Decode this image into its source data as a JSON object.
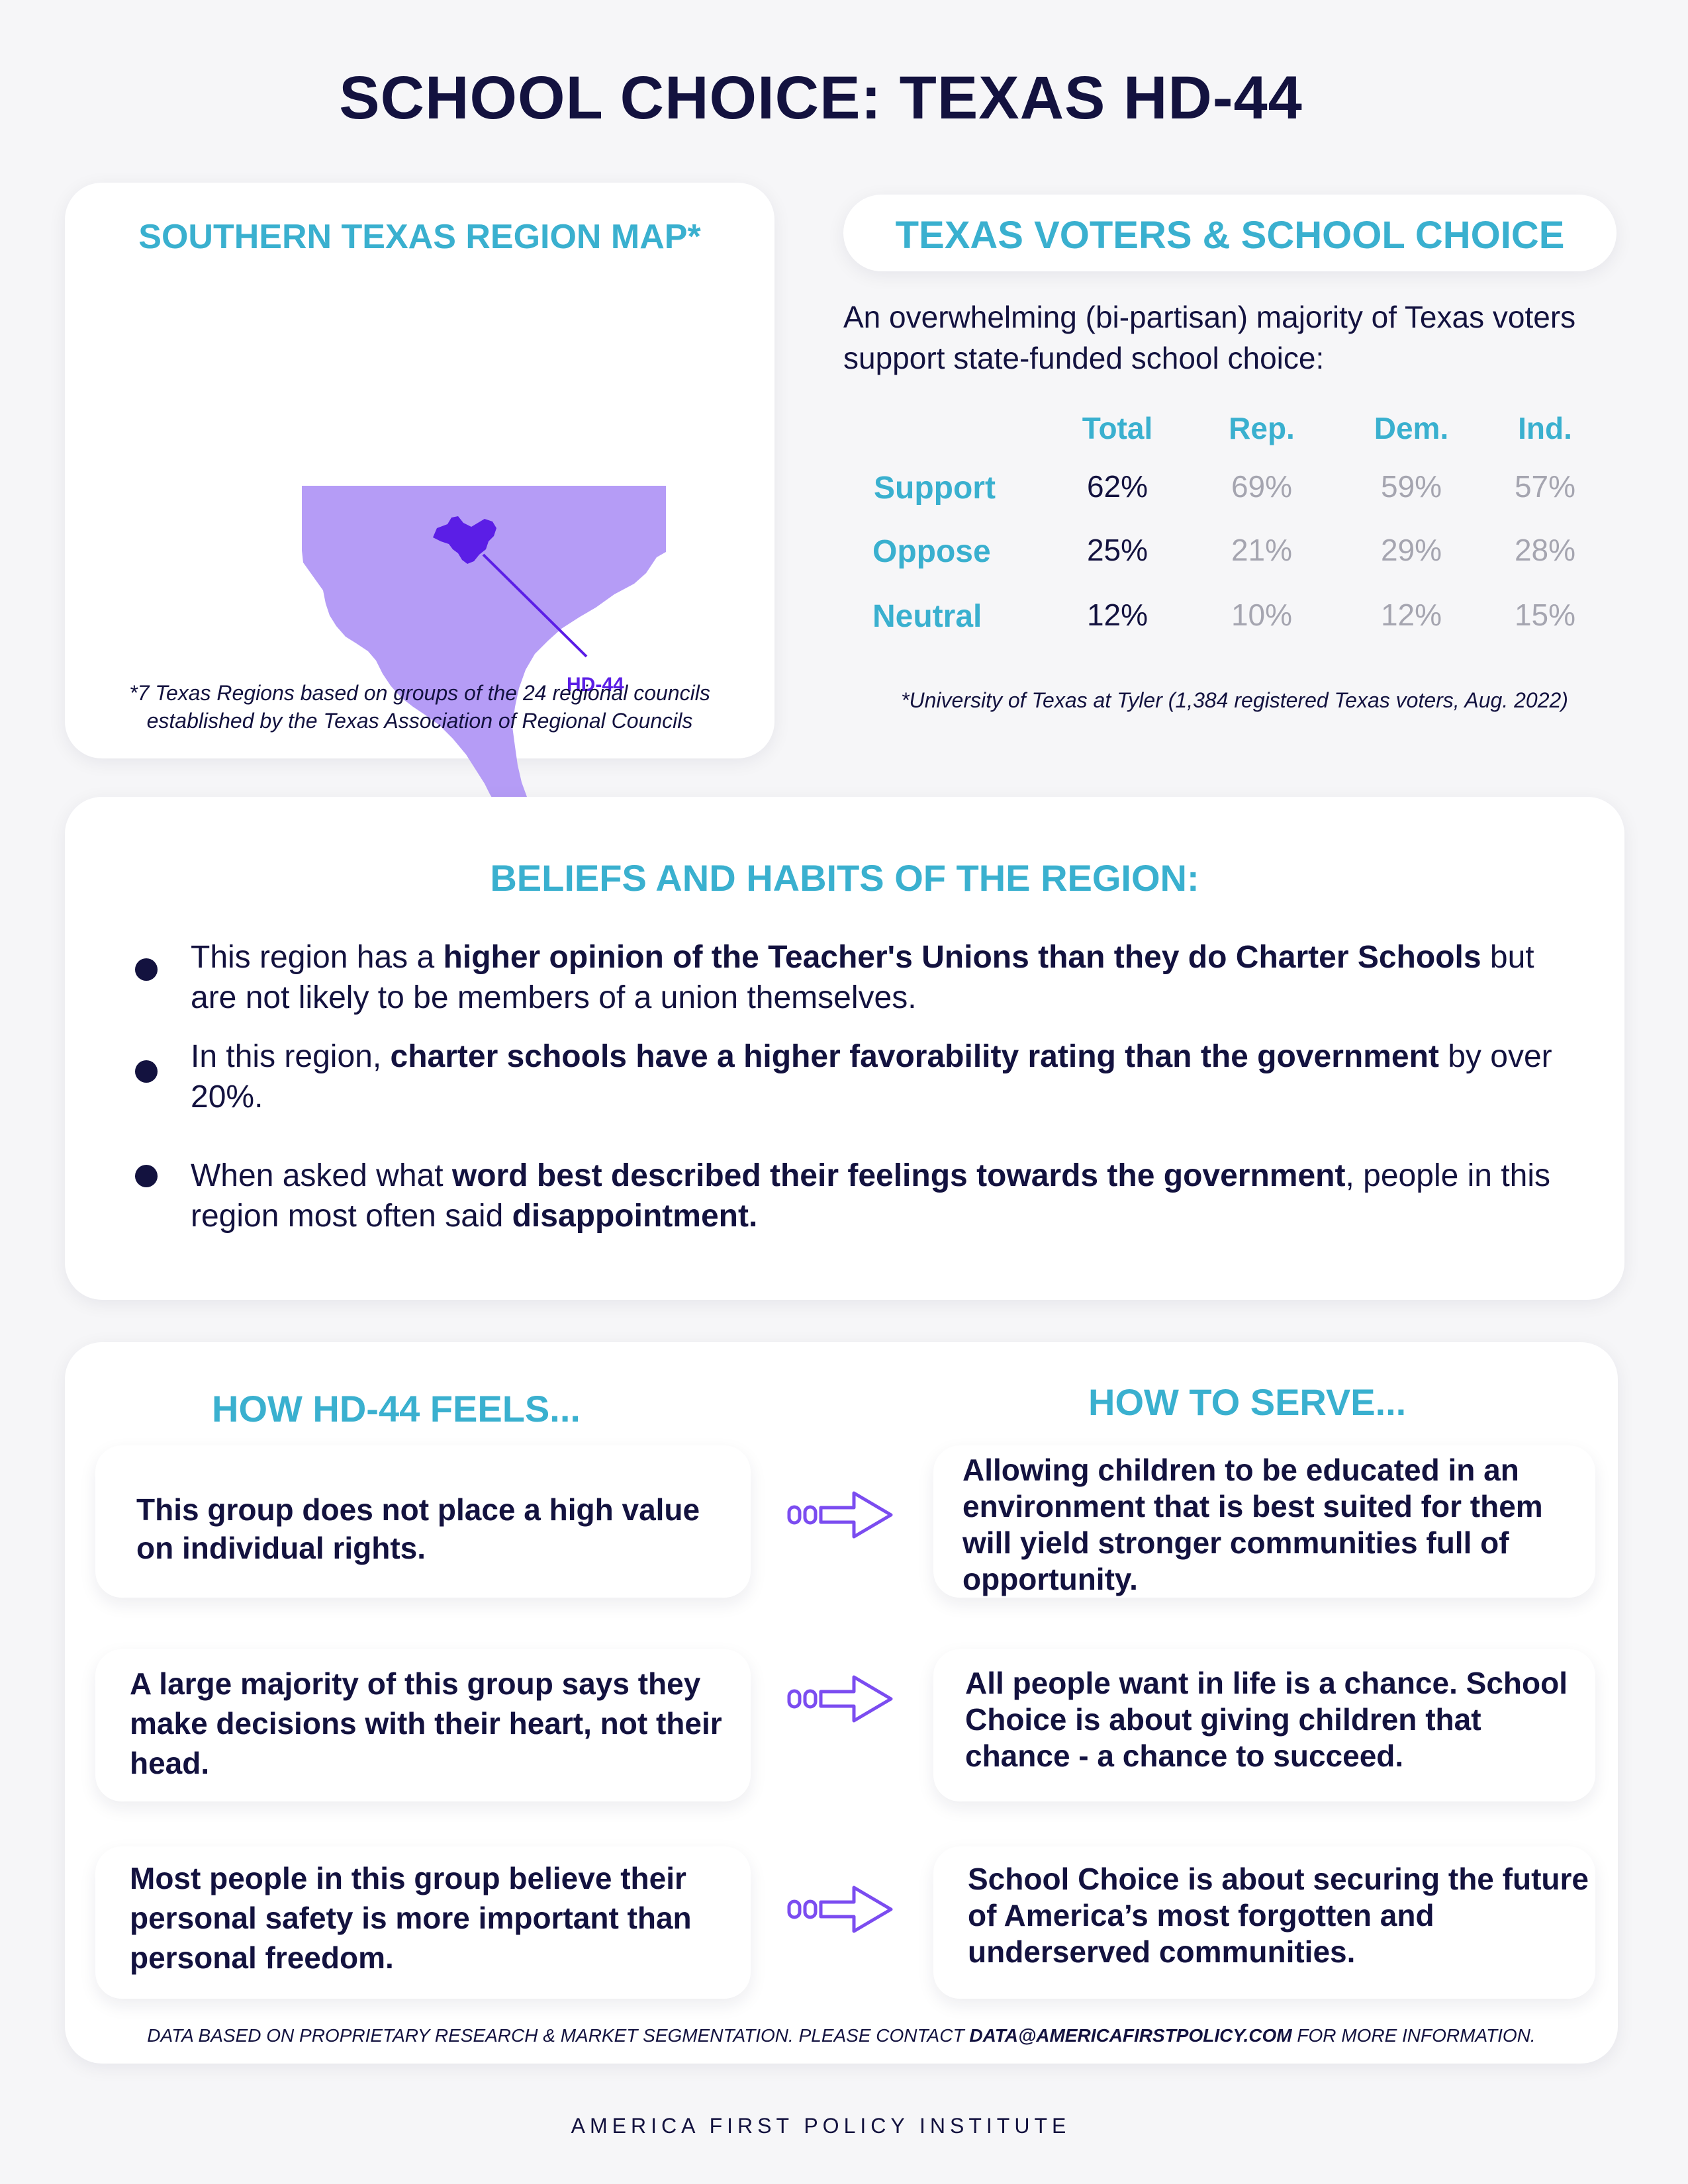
{
  "title": "SCHOOL CHOICE: TEXAS HD-44",
  "map": {
    "title": "SOUTHERN TEXAS REGION MAP*",
    "district_label": "HD-44",
    "note": "*7 Texas Regions based on groups of the 24 regional councils established by the Texas Association of Regional Councils",
    "colors": {
      "region": "#b59cf6",
      "district": "#5b1ee6"
    }
  },
  "voters": {
    "title": "TEXAS VOTERS & SCHOOL CHOICE",
    "intro": "An overwhelming (bi-partisan) majority of Texas voters support state-funded school choice:",
    "columns": [
      "Total",
      "Rep.",
      "Dem.",
      "Ind."
    ],
    "rows": [
      {
        "label": "Support",
        "values": [
          "62%",
          "69%",
          "59%",
          "57%"
        ]
      },
      {
        "label": "Oppose",
        "values": [
          "25%",
          "21%",
          "29%",
          "28%"
        ]
      },
      {
        "label": "Neutral",
        "values": [
          "12%",
          "10%",
          "12%",
          "15%"
        ]
      }
    ],
    "note": "*University of Texas at Tyler (1,384 registered Texas voters, Aug. 2022)"
  },
  "beliefs": {
    "title": "BELIEFS AND HABITS OF THE REGION:",
    "items": [
      {
        "pre": "This region has a ",
        "bold": "higher opinion of the Teacher's Unions than they do Charter Schools",
        "post": " but are not likely to be members of a union themselves.",
        "bold2": ""
      },
      {
        "pre": "In this region, ",
        "bold": "charter schools have a higher favorability rating than the government",
        "post": " by over 20%.",
        "bold2": ""
      },
      {
        "pre": "When asked what ",
        "bold": "word best described their feelings towards the government",
        "post": ", people in this region most often said ",
        "bold2": "disappointment."
      }
    ]
  },
  "feels": {
    "title": "HOW HD-44 FEELS...",
    "items": [
      "This group does not place a high value on individual rights.",
      "A large majority of this group says they make decisions with their heart, not their head.",
      "Most people in this group believe their personal safety is more important than personal freedom."
    ]
  },
  "serve": {
    "title": "HOW TO SERVE...",
    "items": [
      "Allowing children to be educated in an environment that is best suited for them will yield stronger communities full of opportunity.",
      "All people want in life is a chance. School Choice is about giving children that chance - a chance to succeed.",
      "School Choice is about securing the future of America’s most forgotten and underserved communities."
    ]
  },
  "footer": {
    "pre": "DATA BASED ON PROPRIETARY RESEARCH & MARKET SEGMENTATION. PLEASE CONTACT ",
    "email": "DATA@AMERICAFIRSTPOLICY.COM",
    "post": " FOR MORE INFORMATION.",
    "org": "AMERICA FIRST POLICY INSTITUTE"
  },
  "accent_colors": {
    "teal": "#3ab0cf",
    "navy": "#13123f",
    "arrow": "#7b4cf0"
  }
}
